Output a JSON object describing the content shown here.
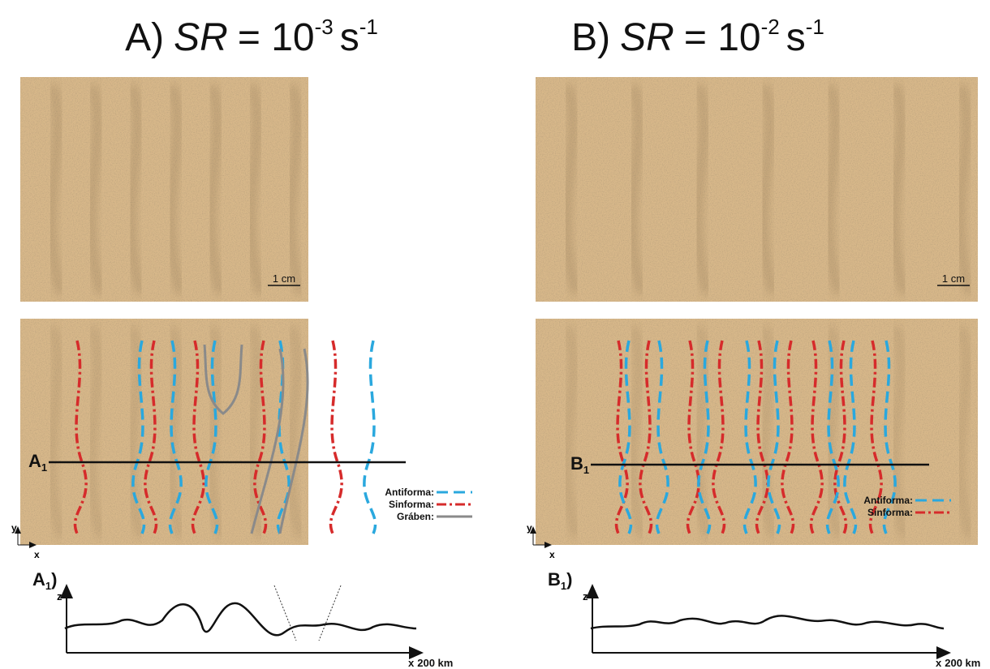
{
  "panels": [
    {
      "title": {
        "label": "A)",
        "var": "SR",
        "eq": "= 10",
        "exp": "-3",
        "unit": "s",
        "unit_exp": "-1"
      },
      "scale_bar": "1 cm",
      "section": {
        "letter": "A",
        "sub": "1"
      },
      "legend": [
        "Antiforma:",
        "Sinforma:",
        "Gráben:"
      ],
      "axes": {
        "y": "y",
        "x": "x"
      },
      "profile": {
        "letter": "A",
        "sub": "1",
        "close": ")",
        "z": "z",
        "x": "x",
        "scale": "200 km"
      }
    },
    {
      "title": {
        "label": "B)",
        "var": "SR",
        "eq": "= 10",
        "exp": "-2",
        "unit": "s",
        "unit_exp": "-1"
      },
      "scale_bar": "1 cm",
      "section": {
        "letter": "B",
        "sub": "1"
      },
      "legend": [
        "Antiforma:",
        "Sinforma:"
      ],
      "axes": {
        "y": "y",
        "x": "x"
      },
      "profile": {
        "letter": "B",
        "sub": "1",
        "close": ")",
        "z": "z",
        "x": "x",
        "scale": "200 km"
      }
    }
  ]
}
